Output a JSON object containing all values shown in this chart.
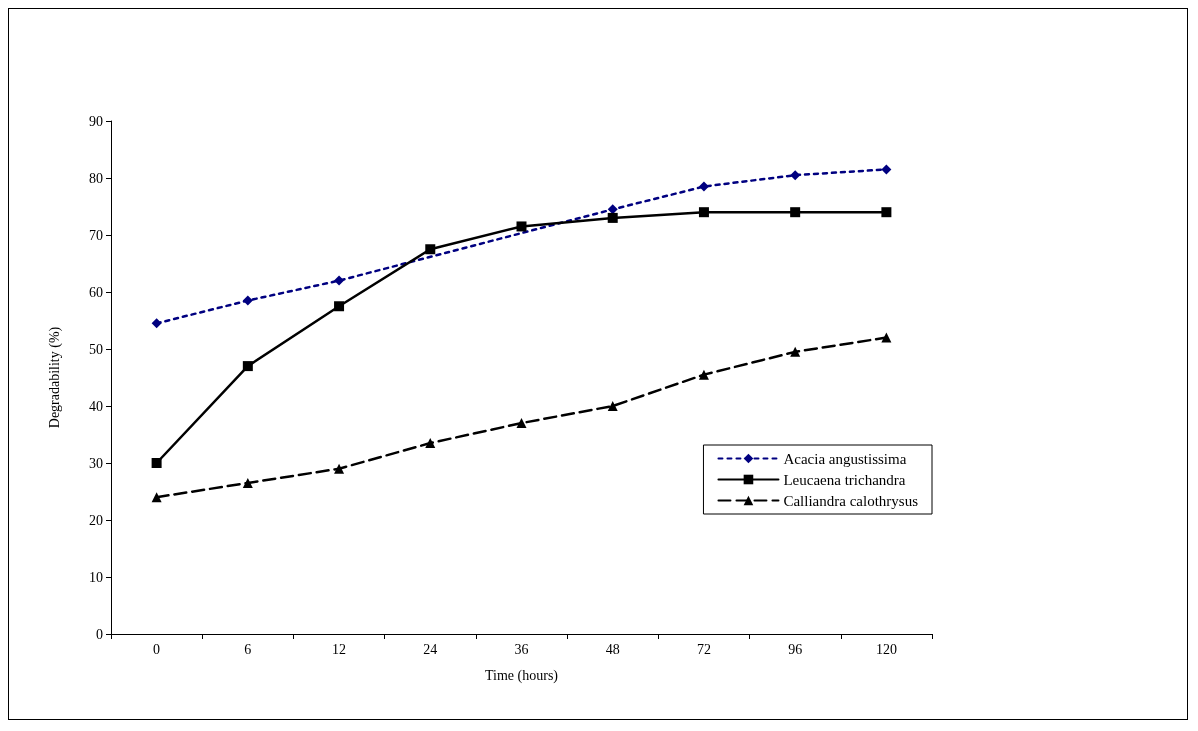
{
  "chart_data": {
    "type": "line",
    "xlabel": "Time (hours)",
    "ylabel": "Degradability (%)",
    "categories": [
      "0",
      "6",
      "12",
      "24",
      "36",
      "48",
      "72",
      "96",
      "120"
    ],
    "ylim": [
      0,
      90
    ],
    "yticks": [
      0,
      10,
      20,
      30,
      40,
      50,
      60,
      70,
      80,
      90
    ],
    "grid": false,
    "legend": "bottom right",
    "series": [
      {
        "name": "Acacia angustissima",
        "color": "#000080",
        "marker": "diamond",
        "line_style": "dotted",
        "values": [
          54.5,
          58.5,
          62,
          null,
          null,
          74.5,
          78.5,
          80.5,
          81.5
        ]
      },
      {
        "name": "Leucaena trichandra",
        "color": "#000000",
        "marker": "square",
        "line_style": "solid",
        "values": [
          30,
          47,
          57.5,
          67.5,
          71.5,
          73,
          74,
          74,
          74
        ]
      },
      {
        "name": "Calliandra calothrysus",
        "color": "#000000",
        "marker": "triangle",
        "line_style": "dashed",
        "values": [
          24,
          26.5,
          29,
          33.5,
          37,
          40,
          45.5,
          49.5,
          52
        ]
      }
    ]
  }
}
